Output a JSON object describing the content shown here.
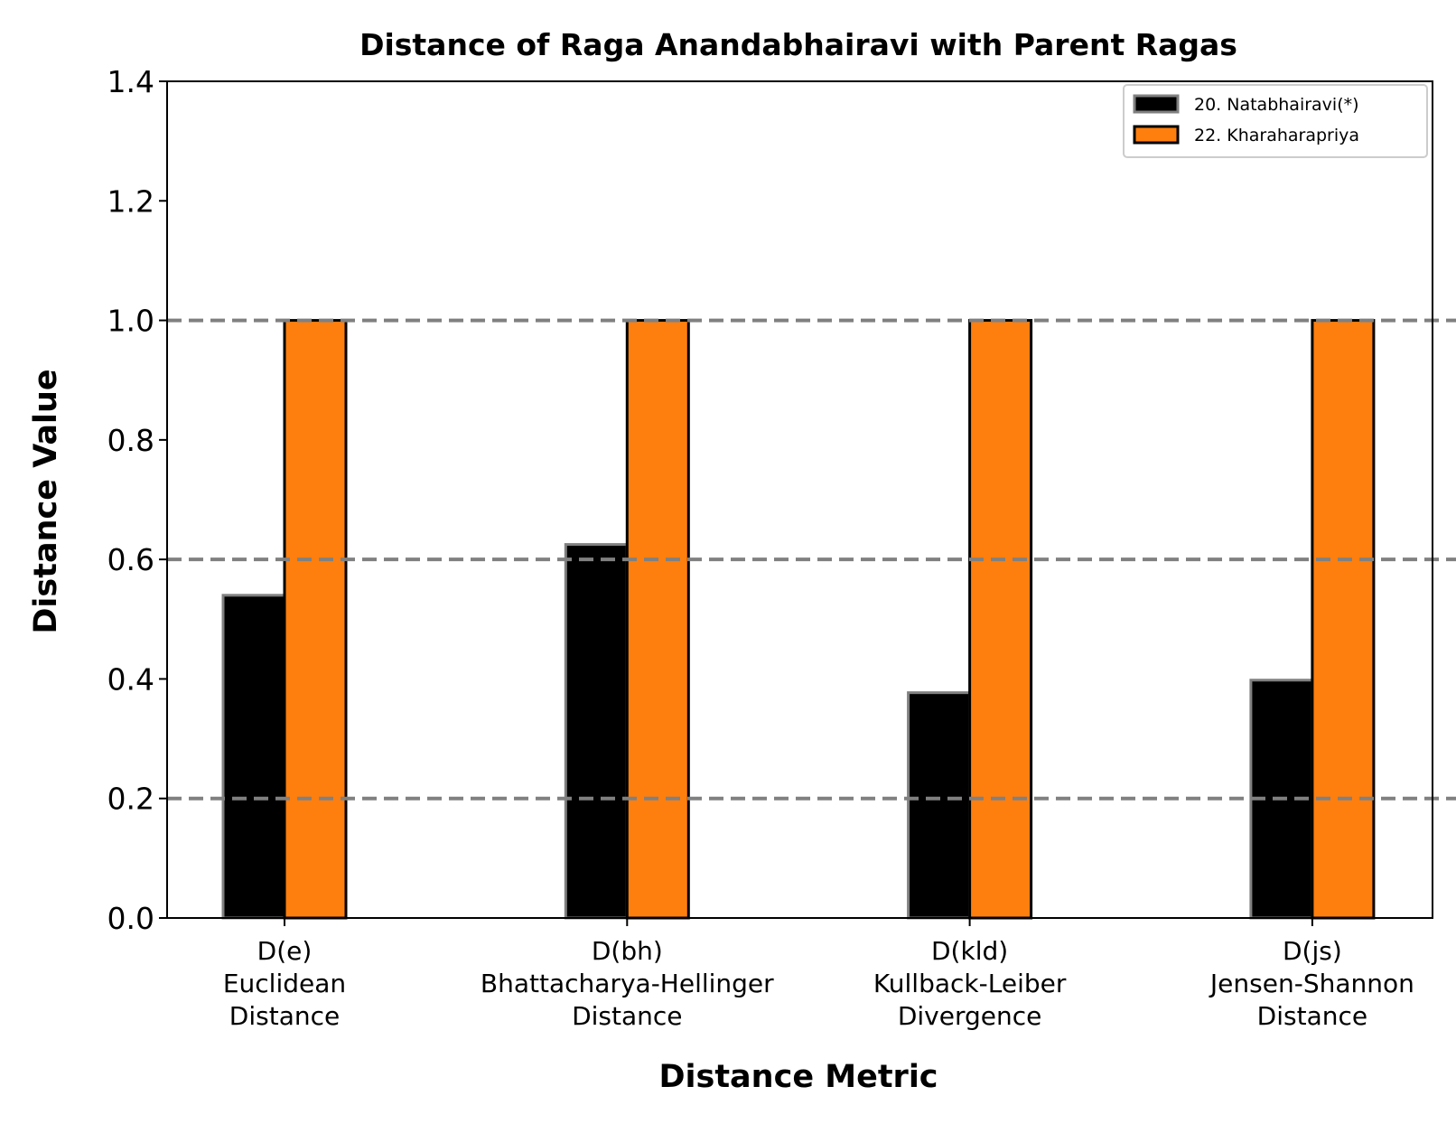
{
  "chart_data": {
    "type": "bar",
    "title": "Distance of Raga Anandabhairavi with Parent Ragas",
    "xlabel": "Distance Metric",
    "ylabel": "Distance Value",
    "ylim": [
      0,
      1.4
    ],
    "yticks": [
      "0.0",
      "0.2",
      "0.4",
      "0.6",
      "0.8",
      "1.0",
      "1.2",
      "1.4"
    ],
    "reference_lines": [
      0.2,
      0.6,
      1.0
    ],
    "categories": [
      [
        "D(e)",
        "Euclidean",
        "Distance"
      ],
      [
        "D(bh)",
        "Bhattacharya-Hellinger",
        "Distance"
      ],
      [
        "D(kld)",
        "Kullback-Leiber",
        "Divergence"
      ],
      [
        "D(js)",
        "Jensen-Shannon",
        "Distance"
      ]
    ],
    "series": [
      {
        "name": "20. Natabhairavi(*)",
        "values": [
          0.54,
          0.625,
          0.377,
          0.398
        ],
        "color": "#000000",
        "edge": "#808080"
      },
      {
        "name": "22. Kharaharapriya",
        "values": [
          1.0,
          1.0,
          1.0,
          1.0
        ],
        "color": "#ff7f0e",
        "edge": "#000000"
      }
    ],
    "grid": false,
    "legend": "top-right"
  }
}
